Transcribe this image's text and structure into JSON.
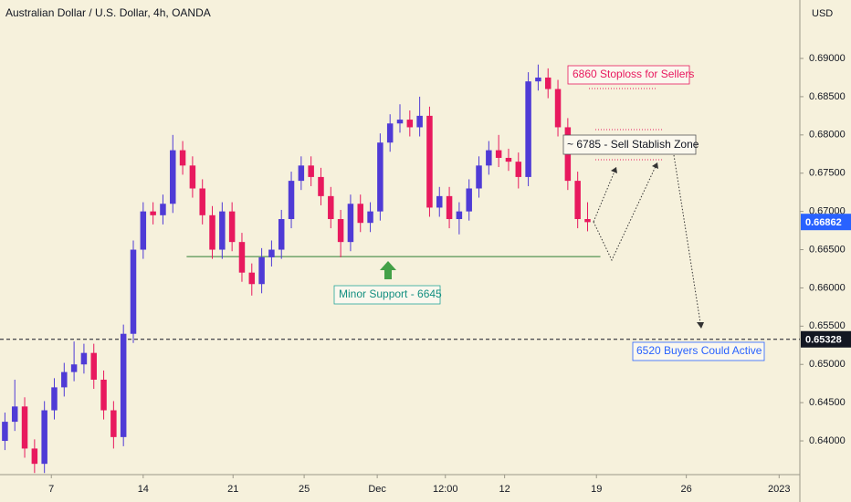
{
  "chart_data": {
    "type": "candlestick",
    "title": "Australian Dollar / U.S. Dollar, 4h, OANDA",
    "currency": "USD",
    "up_color": "#4f3bd6",
    "down_color": "#e8195e",
    "open": [
      0.64,
      0.6425,
      0.6445,
      0.639,
      0.637,
      0.644,
      0.647,
      0.649,
      0.65,
      0.6515,
      0.648,
      0.644,
      0.6405,
      0.654,
      0.665,
      0.67,
      0.6695,
      0.671,
      0.678,
      0.676,
      0.673,
      0.6695,
      0.665,
      0.67,
      0.666,
      0.662,
      0.6605,
      0.664,
      0.665,
      0.669,
      0.674,
      0.676,
      0.6745,
      0.672,
      0.669,
      0.666,
      0.671,
      0.6685,
      0.67,
      0.679,
      0.6815,
      0.682,
      0.681,
      0.6825,
      0.6705,
      0.672,
      0.669,
      0.67,
      0.673,
      0.676,
      0.678,
      0.677,
      0.6765,
      0.6745,
      0.687,
      0.6875,
      0.686,
      0.681,
      0.674,
      0.669
    ],
    "high": [
      0.6437,
      0.648,
      0.6457,
      0.6402,
      0.6452,
      0.6482,
      0.6502,
      0.653,
      0.6527,
      0.6527,
      0.6492,
      0.6452,
      0.6552,
      0.6662,
      0.6712,
      0.6712,
      0.6722,
      0.68,
      0.6792,
      0.6772,
      0.6742,
      0.6707,
      0.6712,
      0.6712,
      0.6672,
      0.6632,
      0.6652,
      0.6662,
      0.6702,
      0.6752,
      0.6772,
      0.6772,
      0.6757,
      0.6732,
      0.6702,
      0.6722,
      0.6722,
      0.6712,
      0.6802,
      0.6827,
      0.684,
      0.6832,
      0.685,
      0.6837,
      0.6732,
      0.6732,
      0.6712,
      0.6742,
      0.6772,
      0.6792,
      0.68,
      0.6782,
      0.6777,
      0.6882,
      0.6892,
      0.6887,
      0.6872,
      0.6822,
      0.6752,
      0.6712
    ],
    "low": [
      0.6388,
      0.6413,
      0.6378,
      0.6358,
      0.6358,
      0.6428,
      0.6458,
      0.6478,
      0.6488,
      0.6468,
      0.6428,
      0.639,
      0.6393,
      0.6528,
      0.6638,
      0.6683,
      0.6683,
      0.6698,
      0.6748,
      0.6718,
      0.6683,
      0.6638,
      0.6638,
      0.6648,
      0.6608,
      0.659,
      0.6593,
      0.6628,
      0.6638,
      0.6678,
      0.6728,
      0.6733,
      0.6708,
      0.6678,
      0.664,
      0.6648,
      0.6673,
      0.6673,
      0.6688,
      0.6778,
      0.6803,
      0.6798,
      0.6798,
      0.6693,
      0.6693,
      0.6678,
      0.667,
      0.6688,
      0.6718,
      0.6748,
      0.6758,
      0.6753,
      0.673,
      0.6733,
      0.6858,
      0.6848,
      0.6798,
      0.6728,
      0.6678,
      0.6674
    ],
    "close": [
      0.6425,
      0.6445,
      0.639,
      0.637,
      0.644,
      0.647,
      0.649,
      0.65,
      0.6515,
      0.648,
      0.644,
      0.6405,
      0.654,
      0.665,
      0.67,
      0.6695,
      0.671,
      0.678,
      0.676,
      0.673,
      0.6695,
      0.665,
      0.67,
      0.666,
      0.662,
      0.6605,
      0.664,
      0.665,
      0.669,
      0.674,
      0.676,
      0.6745,
      0.672,
      0.669,
      0.666,
      0.671,
      0.6685,
      0.67,
      0.679,
      0.6815,
      0.682,
      0.681,
      0.6825,
      0.6705,
      0.672,
      0.669,
      0.67,
      0.673,
      0.676,
      0.678,
      0.677,
      0.6765,
      0.6745,
      0.687,
      0.6875,
      0.686,
      0.681,
      0.674,
      0.669,
      0.6686
    ],
    "xlim": [
      0,
      81
    ],
    "xticks": [
      {
        "value": 5.2,
        "label": "7"
      },
      {
        "value": 14.5,
        "label": "14"
      },
      {
        "value": 23.6,
        "label": "21"
      },
      {
        "value": 30.8,
        "label": "25"
      },
      {
        "value": 38.2,
        "label": "Dec"
      },
      {
        "value": 45.1,
        "label": "12:00"
      },
      {
        "value": 51.1,
        "label": "12"
      },
      {
        "value": 60.4,
        "label": "19"
      },
      {
        "value": 69.5,
        "label": "26"
      },
      {
        "value": 78.9,
        "label": "2023"
      }
    ],
    "ylim": [
      0.63559,
      0.69764
    ],
    "yticks": [
      {
        "value": 0.69,
        "label": "0.69000"
      },
      {
        "value": 0.685,
        "label": "0.68500"
      },
      {
        "value": 0.68,
        "label": "0.68000"
      },
      {
        "value": 0.675,
        "label": "0.67500"
      },
      {
        "value": 0.67,
        "label": "0.67000"
      },
      {
        "value": 0.665,
        "label": "0.66500"
      },
      {
        "value": 0.66,
        "label": "0.66000"
      },
      {
        "value": 0.655,
        "label": "0.65500"
      },
      {
        "value": 0.65,
        "label": "0.65000"
      },
      {
        "value": 0.645,
        "label": "0.64500"
      },
      {
        "value": 0.64,
        "label": "0.64000"
      }
    ],
    "last_price": {
      "value": 0.66862,
      "color": "#2962ff"
    },
    "marked_price": {
      "value": 0.65328,
      "color": "#131722"
    },
    "support_line": {
      "value": 0.6641,
      "color": "#2e7d32"
    },
    "annotations": [
      "6860 Stoploss for Sellers",
      "~ 6785 - Sell Stablish Zone",
      "Minor Support - 6645",
      "6520 Buyers Could Active"
    ]
  }
}
